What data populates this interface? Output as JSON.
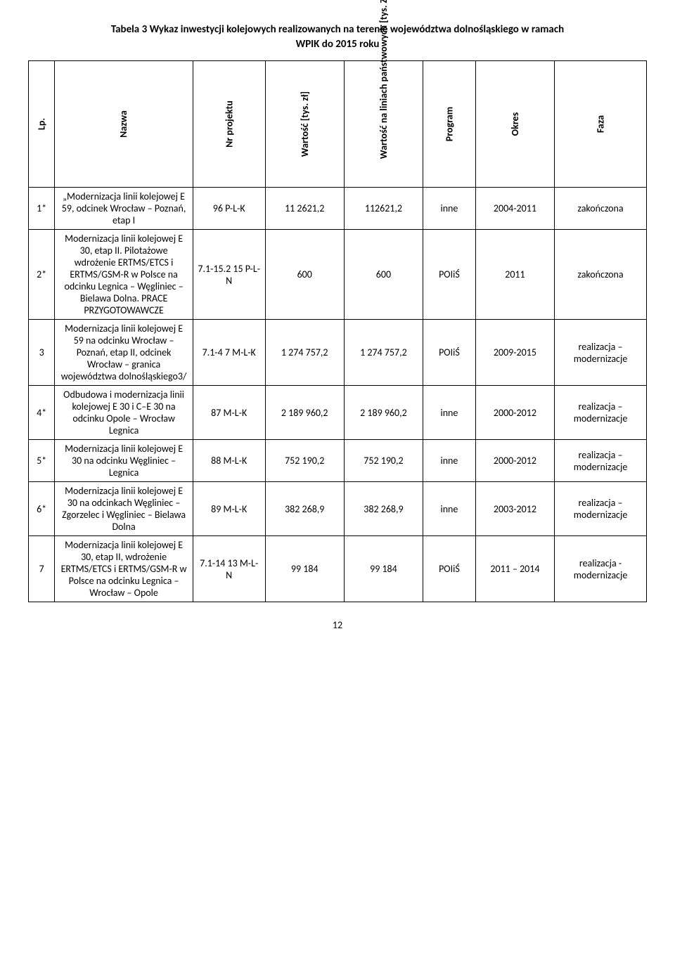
{
  "title_line1": "Tabela 3 Wykaz inwestycji kolejowych realizowanych na terenie województwa dolnośląskiego w ramach",
  "title_line2": "WPIK do 2015 roku",
  "headers": {
    "lp": "Lp.",
    "nazwa": "Nazwa",
    "nr_projektu": "Nr projektu",
    "wartosc": "Wartość [tys. zł]",
    "wartosc_panstw": "Wartość na liniach państwowych [tys. Zł]",
    "program": "Program",
    "okres": "Okres",
    "faza": "Faza"
  },
  "rows": [
    {
      "lp": "1*",
      "nazwa": "„Modernizacja linii kolejowej E 59, odcinek Wrocław – Poznań, etap I",
      "nr": "96 P-L-K",
      "val": "11 2621,2",
      "val2": "112621,2",
      "prog": "inne",
      "okres": "2004-2011",
      "faza": "zakończona"
    },
    {
      "lp": "2*",
      "nazwa": "Modernizacja linii kolejowej E 30, etap II. Pilotażowe wdrożenie ERTMS/ETCS i ERTMS/GSM-R w Polsce na odcinku Legnica – Węgliniec – Bielawa Dolna. PRACE PRZYGOTOWAWCZE",
      "nr": "7.1-15.2 15 P-L-N",
      "val": "600",
      "val2": "600",
      "prog": "POIiŚ",
      "okres": "2011",
      "faza": "zakończona"
    },
    {
      "lp": "3",
      "nazwa": "Modernizacja linii kolejowej E 59 na odcinku Wrocław – Poznań, etap II, odcinek Wrocław – granica województwa dolnośląskiego3/",
      "nr": "7.1-4 7 M-L-K",
      "val": "1 274 757,2",
      "val2": "1 274 757,2",
      "prog": "POIiŚ",
      "okres": "2009-2015",
      "faza": "realizacja – modernizacje"
    },
    {
      "lp": "4*",
      "nazwa": "Odbudowa i modernizacja linii kolejowej E 30 i C–E 30 na odcinku Opole – Wrocław Legnica",
      "nr": "87 M-L-K",
      "val": "2 189 960,2",
      "val2": "2 189 960,2",
      "prog": "inne",
      "okres": "2000-2012",
      "faza": "realizacja – modernizacje"
    },
    {
      "lp": "5*",
      "nazwa": "Modernizacja linii kolejowej E 30 na odcinku Węgliniec – Legnica",
      "nr": "88 M-L-K",
      "val": "752 190,2",
      "val2": "752 190,2",
      "prog": "inne",
      "okres": "2000-2012",
      "faza": "realizacja – modernizacje"
    },
    {
      "lp": "6*",
      "nazwa": "Modernizacja linii kolejowej E 30 na odcinkach Węgliniec – Zgorzelec i Węgliniec – Bielawa Dolna",
      "nr": "89 M-L-K",
      "val": "382 268,9",
      "val2": "382 268,9",
      "prog": "inne",
      "okres": "2003-2012",
      "faza": "realizacja – modernizacje"
    },
    {
      "lp": "7",
      "nazwa": "Modernizacja linii kolejowej E 30, etap II, wdrożenie ERTMS/ETCS i ERTMS/GSM-R w Polsce na odcinku Legnica – Wrocław – Opole",
      "nr": "7.1-14 13 M-L-N",
      "val": "99 184",
      "val2": "99 184",
      "prog": "POIiŚ",
      "okres": "2011 – 2014",
      "faza": "realizacja - modernizacje"
    }
  ],
  "page_number": "12"
}
